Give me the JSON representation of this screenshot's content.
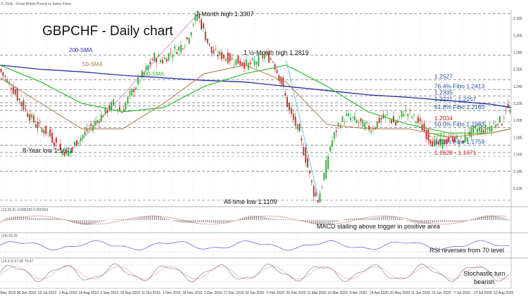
{
  "header": {
    "instrument": "F, Daily : Great Britain Pound vs Swiss Franc",
    "title": "GBPCHF - Daily chart"
  },
  "colors": {
    "sma200": "#2a2aa8",
    "sma100": "#2fbf2f",
    "sma50": "#b07a45",
    "candle_up": "#38a838",
    "candle_down": "#c03030",
    "fibo": "#1f4fa0",
    "support_red": "#cc2020",
    "fan_line": "#4bbfe0",
    "trend_line": "#d080d0"
  },
  "chart_data": [
    {
      "type": "candlestick",
      "title": "GBPCHF - Daily chart",
      "ylim": [
        1.105,
        1.335
      ],
      "x_tick_labels": [
        "15 May 2019",
        "30 Jun 2019",
        "15 Jul 2019",
        "1 Aug 2019",
        "16 Aug 2019",
        "3 Sep 2019",
        "18 Sep 2019",
        "11 Oct 2019",
        "1 Nov 2019",
        "18 Nov 2019",
        "2 Dec 2019",
        "17 Dec 2019",
        "10 Jan 2020",
        "3 Feb 2020",
        "25 Feb 2020",
        "11 Mar 2020",
        "16 Mar 2020",
        "6 Apr 2020",
        "24 Apr 2020",
        "20 May 2020",
        "11 Jun 2020",
        "23 Jun 2020",
        "7 Jul 2020",
        "27 Jul 2020",
        "10 Aug 2020"
      ],
      "series": [
        {
          "name": "200-SMA",
          "key": "sma200"
        },
        {
          "name": "100-SMA",
          "key": "sma100"
        },
        {
          "name": "50-SMA",
          "key": "sma50"
        }
      ],
      "price_path": [
        [
          0,
          1.265
        ],
        [
          6,
          1.245
        ],
        [
          12,
          1.22
        ],
        [
          18,
          1.2
        ],
        [
          24,
          1.19
        ],
        [
          30,
          1.17
        ],
        [
          34,
          1.1671
        ],
        [
          38,
          1.18
        ],
        [
          44,
          1.195
        ],
        [
          50,
          1.21
        ],
        [
          56,
          1.225
        ],
        [
          60,
          1.215
        ],
        [
          64,
          1.235
        ],
        [
          68,
          1.25
        ],
        [
          72,
          1.265
        ],
        [
          76,
          1.28
        ],
        [
          80,
          1.275
        ],
        [
          84,
          1.285
        ],
        [
          88,
          1.29
        ],
        [
          92,
          1.3
        ],
        [
          95,
          1.32
        ],
        [
          97,
          1.3307
        ],
        [
          100,
          1.31
        ],
        [
          104,
          1.285
        ],
        [
          110,
          1.28
        ],
        [
          116,
          1.275
        ],
        [
          122,
          1.27
        ],
        [
          126,
          1.275
        ],
        [
          130,
          1.2819
        ],
        [
          134,
          1.275
        ],
        [
          138,
          1.25
        ],
        [
          142,
          1.215
        ],
        [
          146,
          1.195
        ],
        [
          150,
          1.16
        ],
        [
          154,
          1.12
        ],
        [
          156,
          1.1109
        ],
        [
          158,
          1.13
        ],
        [
          162,
          1.175
        ],
        [
          166,
          1.2
        ],
        [
          170,
          1.21
        ],
        [
          174,
          1.205
        ],
        [
          178,
          1.2
        ],
        [
          182,
          1.195
        ],
        [
          186,
          1.205
        ],
        [
          190,
          1.21
        ],
        [
          194,
          1.2
        ],
        [
          198,
          1.2165
        ],
        [
          202,
          1.21
        ],
        [
          206,
          1.2
        ],
        [
          210,
          1.185
        ],
        [
          214,
          1.175
        ],
        [
          218,
          1.18
        ],
        [
          222,
          1.185
        ],
        [
          226,
          1.18
        ],
        [
          230,
          1.19
        ],
        [
          234,
          1.195
        ],
        [
          238,
          1.195
        ],
        [
          242,
          1.2
        ],
        [
          244,
          1.205
        ],
        [
          246,
          1.2034
        ],
        [
          248,
          1.22
        ],
        [
          250,
          1.215
        ]
      ],
      "sma200_path": [
        [
          0,
          1.27
        ],
        [
          20,
          1.265
        ],
        [
          40,
          1.262
        ],
        [
          60,
          1.258
        ],
        [
          80,
          1.255
        ],
        [
          100,
          1.252
        ],
        [
          120,
          1.25
        ],
        [
          140,
          1.245
        ],
        [
          160,
          1.24
        ],
        [
          180,
          1.235
        ],
        [
          200,
          1.232
        ],
        [
          220,
          1.228
        ],
        [
          240,
          1.224
        ],
        [
          250,
          1.22
        ]
      ],
      "sma100_path": [
        [
          0,
          1.27
        ],
        [
          20,
          1.25
        ],
        [
          40,
          1.225
        ],
        [
          60,
          1.215
        ],
        [
          80,
          1.22
        ],
        [
          100,
          1.245
        ],
        [
          120,
          1.26
        ],
        [
          140,
          1.27
        ],
        [
          160,
          1.245
        ],
        [
          180,
          1.215
        ],
        [
          200,
          1.2
        ],
        [
          220,
          1.19
        ],
        [
          240,
          1.19
        ],
        [
          250,
          1.195
        ]
      ],
      "sma50_path": [
        [
          0,
          1.255
        ],
        [
          20,
          1.225
        ],
        [
          40,
          1.195
        ],
        [
          60,
          1.195
        ],
        [
          80,
          1.225
        ],
        [
          100,
          1.26
        ],
        [
          120,
          1.27
        ],
        [
          140,
          1.25
        ],
        [
          160,
          1.2
        ],
        [
          180,
          1.195
        ],
        [
          200,
          1.195
        ],
        [
          220,
          1.185
        ],
        [
          240,
          1.19
        ],
        [
          250,
          1.195
        ]
      ],
      "levels": [
        {
          "price": 1.3307,
          "label": "",
          "color_key": "fibo"
        },
        {
          "price": 1.2819,
          "label": "",
          "color_key": "fibo"
        },
        {
          "price": 1.2527,
          "label": "1.2527",
          "color_key": "fibo"
        },
        {
          "price": 1.2413,
          "label": "76.4% Fibo 1.2413",
          "color_key": "fibo"
        },
        {
          "price": 1.2335,
          "label": "1.2335",
          "color_key": "fibo"
        },
        {
          "price": 1.2257,
          "label": "1.2221 - 1.2257",
          "color_key": "fibo"
        },
        {
          "price": 1.2221,
          "label": "",
          "color_key": "fibo"
        },
        {
          "price": 1.2165,
          "label": "61.8% Fibo 1.2165",
          "color_key": "fibo"
        },
        {
          "price": 1.2034,
          "label": "1.2034",
          "color_key": "support_red"
        },
        {
          "price": 1.1963,
          "label": "50.0% Fibo 1.1963",
          "color_key": "fibo"
        },
        {
          "price": 1.1759,
          "label": "38.2% Fibo 1.1759",
          "color_key": "fibo"
        },
        {
          "price": 1.1671,
          "label": "",
          "color_key": "fibo"
        },
        {
          "price": 1.1628,
          "label": "1.1628 - 1.1671",
          "color_key": "support_red"
        },
        {
          "price": 1.145,
          "label": "",
          "color_key": "fibo"
        },
        {
          "price": 1.1109,
          "label": "",
          "color_key": "fibo"
        }
      ],
      "annotations": {
        "seven_month_high": "7-Month high 1.3307",
        "one_half_month_high": "1 ½-Month high 1.2819",
        "eight_year_low": "8-Year low 1.1671",
        "all_time_low": "All-time low 1.1109",
        "sma200_label": "200-SMA",
        "sma100_label": "100-SMA",
        "sma50_label": "50-SMA",
        "green_label_a": "1.1932",
        "green_label_b": "1.1900"
      }
    },
    {
      "type": "histogram",
      "name": "MACD",
      "header": "(12,26,9) -0.005295 0.005604",
      "note": "MACD stalling above trigger in positive area"
    },
    {
      "type": "line",
      "name": "RSI",
      "header": "(14) 63.29",
      "note": "RSI reverses from 70 level"
    },
    {
      "type": "line",
      "name": "Stochastic",
      "header": "(14,3,3) 67.96 79.47",
      "note": "Stochastic turn bearish"
    }
  ]
}
